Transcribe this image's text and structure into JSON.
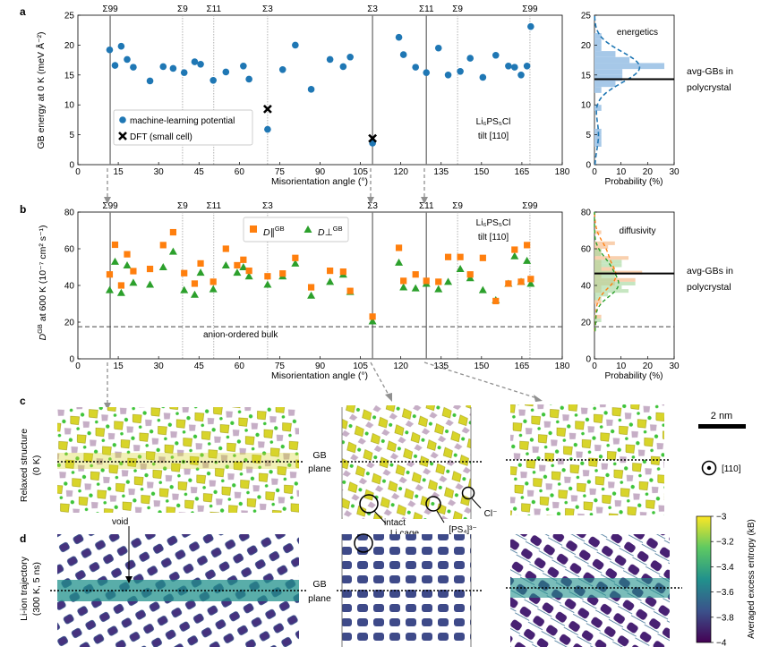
{
  "panels": {
    "a": "a",
    "b": "b",
    "c": "c",
    "d": "d"
  },
  "colors": {
    "ml_blue": "#1f77b4",
    "dpar_orange": "#ff7f0e",
    "dperp_green": "#2ca02c",
    "hist_blue": "#a6c8e8",
    "hist_orange": "#f8c49a",
    "hist_green": "#a8d8a0",
    "sulfur_yellow": "#d8d42a",
    "phosphorus_purple": "#b89ab8",
    "chlorine_green": "#3fc43a",
    "grey_line": "#909090"
  },
  "sigma_labels": [
    {
      "text": "Σ99",
      "angle": 12.0,
      "style": "solid"
    },
    {
      "text": "Σ9",
      "angle": 38.9,
      "style": "dotted"
    },
    {
      "text": "Σ11",
      "angle": 50.5,
      "style": "dotted"
    },
    {
      "text": "Σ3",
      "angle": 70.5,
      "style": "dotted"
    },
    {
      "text": "Σ3",
      "angle": 109.5,
      "style": "solid"
    },
    {
      "text": "Σ11",
      "angle": 129.5,
      "style": "solid"
    },
    {
      "text": "Σ9",
      "angle": 141.1,
      "style": "dotted"
    },
    {
      "text": "Σ99",
      "angle": 168.0,
      "style": "dotted"
    }
  ],
  "chart_data": [
    {
      "id": "panel-a-scatter",
      "type": "scatter",
      "xlabel": "Misorientation angle (°)",
      "ylabel": "GB energy at 0 K (meV Å⁻²)",
      "xlim": [
        0,
        180
      ],
      "ylim": [
        0,
        25
      ],
      "xticks": [
        0,
        15,
        30,
        45,
        60,
        75,
        90,
        105,
        120,
        135,
        150,
        165,
        180
      ],
      "yticks": [
        0,
        5,
        10,
        15,
        20,
        25
      ],
      "annotation": [
        "Li₆PS₅Cl",
        "tilt [110]"
      ],
      "series": [
        {
          "name": "machine-learning potential",
          "marker": "circle",
          "x": [
            11.8,
            13.8,
            16.1,
            18.3,
            20.6,
            26.8,
            31.7,
            35.4,
            39.5,
            43.4,
            45.6,
            50.3,
            55.0,
            61.5,
            63.6,
            70.5,
            76.1,
            80.8,
            86.7,
            93.7,
            98.6,
            101.2,
            109.5,
            119.3,
            121.0,
            125.5,
            129.5,
            134.0,
            137.6,
            142.1,
            145.8,
            150.5,
            155.3,
            160.0,
            162.3,
            164.7,
            166.9,
            168.3
          ],
          "y": [
            19.2,
            16.6,
            19.8,
            17.6,
            16.3,
            14.0,
            16.4,
            16.1,
            15.4,
            17.2,
            16.8,
            14.1,
            15.5,
            16.5,
            14.3,
            5.9,
            15.9,
            20.0,
            12.6,
            17.6,
            16.4,
            18.0,
            3.6,
            21.3,
            18.4,
            16.3,
            15.4,
            19.5,
            15.0,
            15.6,
            17.8,
            14.6,
            18.3,
            16.5,
            16.3,
            15.0,
            16.5,
            23.1
          ]
        },
        {
          "name": "DFT (small cell)",
          "marker": "x",
          "x": [
            70.5,
            109.5
          ],
          "y": [
            9.3,
            4.4
          ]
        }
      ]
    },
    {
      "id": "panel-a-histogram",
      "type": "bar",
      "title": "energetics",
      "xlabel": "Probability (%)",
      "xlim": [
        0,
        30
      ],
      "ylim": [
        0,
        25
      ],
      "xticks": [
        0,
        10,
        20,
        30
      ],
      "yticks": [
        0,
        5,
        10,
        15,
        20,
        25
      ],
      "bins_center": [
        3.5,
        4.5,
        5.5,
        9.5,
        12.5,
        13.5,
        14.5,
        15.5,
        16.5,
        17.5,
        18.5,
        19.5,
        20.5,
        21.5
      ],
      "probability": [
        2.6,
        2.6,
        2.6,
        2.6,
        2.6,
        7.9,
        10.5,
        10.5,
        26.3,
        13.2,
        7.9,
        2.6,
        2.6,
        2.6
      ],
      "avg_line_y": 14.3,
      "avg_label": [
        "avg-GBs in",
        "polycrystal"
      ]
    },
    {
      "id": "panel-b-scatter",
      "type": "scatter",
      "xlabel": "Misorientation angle (°)",
      "ylabel": "D^GB at 600 K (10⁻⁷ cm² s⁻¹)",
      "xlim": [
        0,
        180
      ],
      "ylim": [
        0,
        80
      ],
      "xticks": [
        0,
        15,
        30,
        45,
        60,
        75,
        90,
        105,
        120,
        135,
        150,
        165,
        180
      ],
      "yticks": [
        0,
        20,
        40,
        60,
        80
      ],
      "annotation": [
        "Li₆PS₅Cl",
        "tilt [110]"
      ],
      "bulk_line_y": 17.5,
      "bulk_label": "anion-ordered bulk",
      "series": [
        {
          "name": "D∥ GB",
          "marker": "square",
          "x": [
            11.8,
            13.8,
            16.1,
            18.3,
            20.6,
            26.8,
            31.7,
            35.4,
            39.5,
            43.4,
            45.6,
            50.3,
            55.0,
            59.2,
            61.5,
            63.6,
            70.5,
            76.1,
            80.8,
            86.7,
            93.7,
            98.6,
            101.2,
            109.5,
            119.3,
            121.0,
            125.5,
            129.5,
            134.0,
            137.6,
            142.1,
            145.8,
            150.5,
            155.3,
            160.0,
            162.3,
            164.7,
            166.9,
            168.3
          ],
          "y": [
            46.0,
            62.2,
            40.0,
            57.0,
            47.8,
            49.0,
            62.0,
            69.0,
            46.7,
            41.0,
            52.0,
            42.0,
            60.0,
            51.0,
            54.0,
            48.0,
            45.0,
            46.5,
            55.0,
            39.0,
            48.0,
            47.5,
            37.0,
            23.0,
            60.5,
            42.5,
            46.0,
            42.5,
            42.0,
            55.5,
            55.5,
            46.0,
            55.0,
            31.5,
            41.0,
            59.5,
            42.0,
            62.0,
            43.5
          ]
        },
        {
          "name": "D⊥ GB",
          "marker": "triangle",
          "x": [
            11.8,
            13.8,
            16.1,
            18.3,
            20.6,
            26.8,
            31.7,
            35.4,
            39.5,
            43.4,
            45.6,
            50.3,
            55.0,
            59.2,
            61.5,
            63.6,
            70.5,
            76.1,
            80.8,
            86.7,
            93.7,
            98.6,
            101.2,
            109.5,
            119.3,
            121.0,
            125.5,
            129.5,
            134.0,
            137.6,
            142.1,
            145.8,
            150.5,
            155.3,
            160.0,
            162.3,
            164.7,
            166.9,
            168.3
          ],
          "y": [
            37.5,
            53.0,
            36.0,
            51.0,
            41.5,
            40.5,
            50.0,
            58.5,
            37.5,
            35.0,
            47.0,
            38.0,
            51.0,
            47.0,
            50.0,
            45.0,
            40.5,
            45.0,
            52.0,
            34.5,
            42.0,
            46.0,
            36.5,
            20.5,
            52.5,
            39.0,
            38.5,
            41.0,
            38.0,
            42.0,
            49.0,
            44.0,
            37.5,
            32.0,
            41.0,
            56.0,
            42.0,
            53.5,
            41.0
          ]
        }
      ]
    },
    {
      "id": "panel-b-histogram",
      "type": "bar",
      "title": "diffusivity",
      "xlabel": "Probability (%)",
      "xlim": [
        0,
        30
      ],
      "ylim": [
        0,
        80
      ],
      "xticks": [
        0,
        10,
        20,
        30
      ],
      "yticks": [
        0,
        20,
        40,
        60,
        80
      ],
      "avg_line_y": 46.5,
      "bulk_line_y": 17.5,
      "avg_label": [
        "avg-GBs in",
        "polycrystal"
      ]
    },
    {
      "id": "panel-d-colorbar",
      "type": "heatmap",
      "ylabel": "Averaged excess entropy (k_B)",
      "range": [
        -4.0,
        -3.0
      ],
      "ticks": [
        -3.0,
        -3.2,
        -3.4,
        -3.6,
        -3.8,
        -4.0
      ],
      "tick_labels": [
        "−3",
        "−3.2",
        "−3.4",
        "−3.6",
        "−3.8",
        "−4"
      ],
      "colormap": "viridis"
    }
  ],
  "text": {
    "legend_ml": "machine-learning potential",
    "legend_dft": "DFT (small cell)",
    "legend_dpar": "D∥",
    "legend_dperp": "D⊥",
    "legend_gb_sup": "GB",
    "energetics": "energetics",
    "diffusivity": "diffusivity",
    "avg_line1": "avg-GBs in",
    "avg_line2": "polycrystal",
    "bulk_label": "anion-ordered bulk",
    "composition": "Li₆PS₅Cl",
    "tilt": "tilt [110]",
    "xlabel": "Misorientation angle (°)",
    "prob_label": "Probability (%)",
    "ylabel_a": "GB energy at 0 K (meV Å⁻²)",
    "ylabel_b_main": "D",
    "ylabel_b_sup": "GB",
    "ylabel_b_rest": " at 600 K (10⁻⁷ cm² s⁻¹)",
    "relaxed_structure": "Relaxed structure",
    "relaxed_temp": "(0 K)",
    "li_traj": "Li-ion trajectory",
    "li_traj_cond": "(300 K, 5 ns)",
    "gb": "GB",
    "plane": "plane",
    "scale_bar": "2 nm",
    "direction": "[110]",
    "intact": "intact",
    "li_cage": "Li cage",
    "ps4": "[PS₄]³⁻",
    "cl": "Cl⁻",
    "void": "void",
    "entropy_label": "Averaged excess entropy (kB)"
  }
}
